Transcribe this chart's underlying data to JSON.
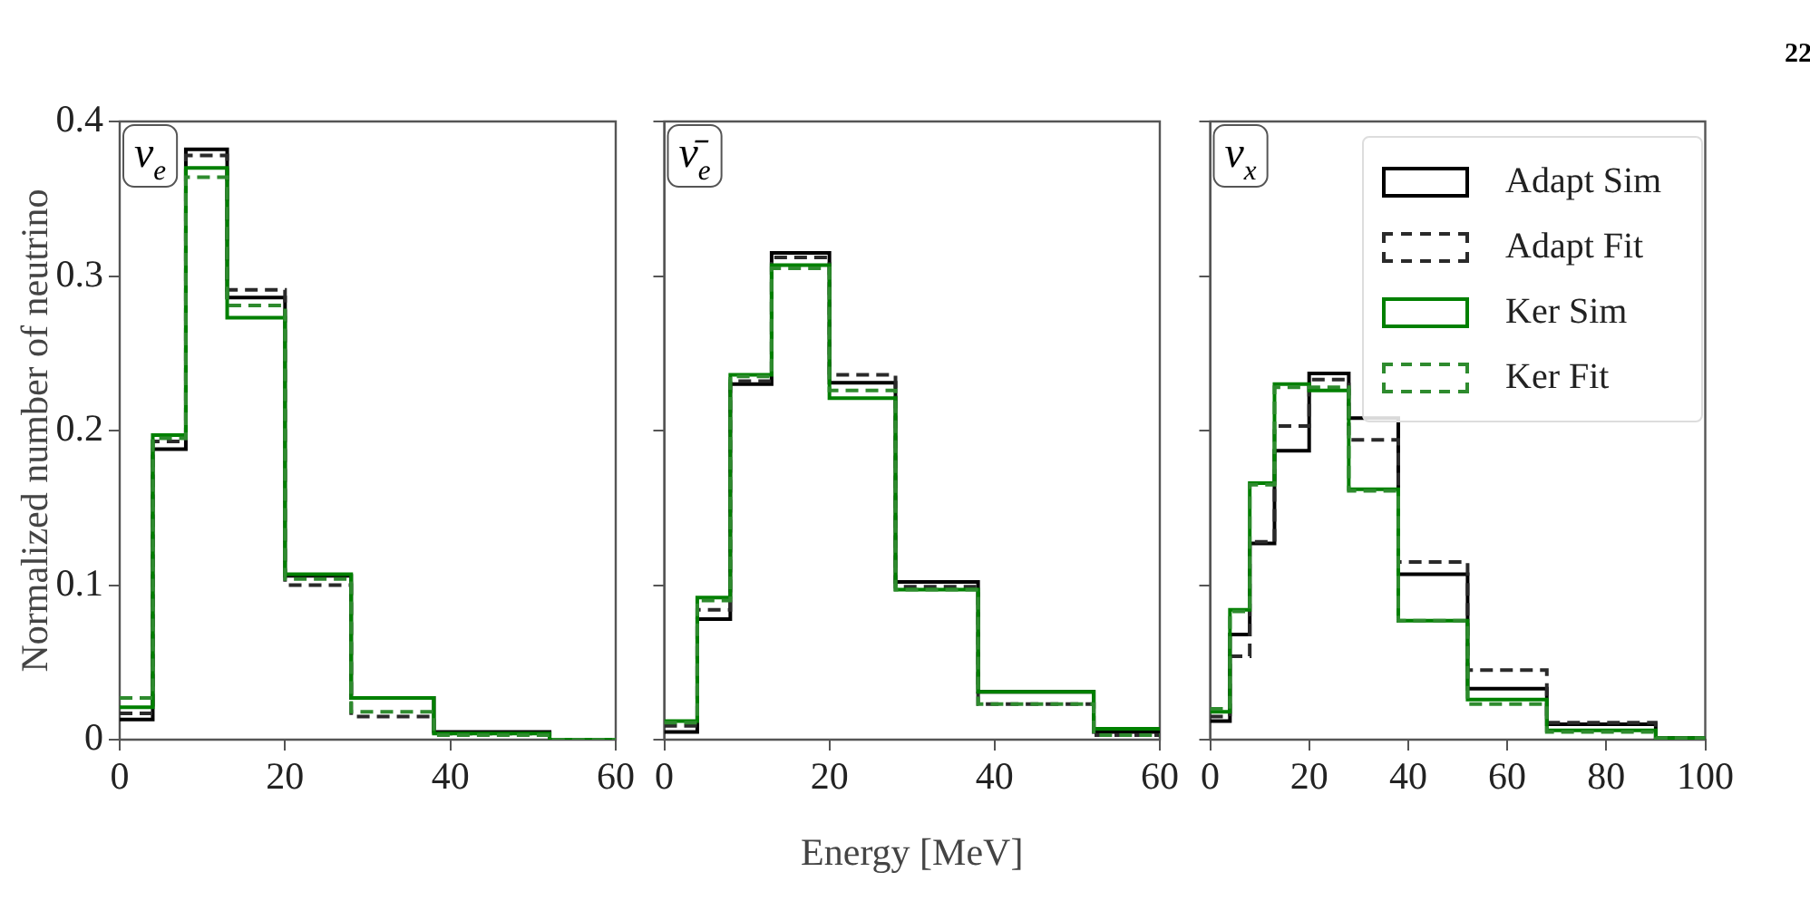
{
  "chart_data": [
    {
      "type": "histogram",
      "ylabel": "Normalized number of neutrino",
      "annotations": [
        "ν$_{e}$"
      ],
      "bins": [
        0,
        4,
        8,
        13,
        20,
        28,
        38,
        52,
        60
      ],
      "xlim": [
        0,
        60
      ],
      "xticks": [
        0,
        20,
        40,
        60
      ],
      "ylim": [
        0,
        0.4
      ],
      "yticks": [
        0,
        0.1,
        0.2,
        0.3,
        0.4
      ],
      "legend": false,
      "series": [
        {
          "color": "#000000",
          "line_style": "solid",
          "values": [
            0.013,
            0.188,
            0.382,
            0.286,
            0.106,
            0.027,
            0.005,
            0
          ]
        },
        {
          "color": "#2a2a2a",
          "line_style": "dashed",
          "values": [
            0.017,
            0.193,
            0.378,
            0.291,
            0.1,
            0.015,
            0.004,
            0
          ]
        },
        {
          "color": "#008000",
          "line_style": "solid",
          "values": [
            0.021,
            0.197,
            0.37,
            0.273,
            0.107,
            0.027,
            0.004,
            0
          ]
        },
        {
          "color": "#2e8b2e",
          "line_style": "dashed",
          "values": [
            0.027,
            0.195,
            0.364,
            0.281,
            0.104,
            0.018,
            0.003,
            0
          ]
        }
      ]
    },
    {
      "type": "histogram",
      "xlabel": "Energy [MeV]",
      "annotations": [
        "ν̄$_{e}$"
      ],
      "bins": [
        0,
        4,
        8,
        13,
        20,
        28,
        38,
        52,
        60
      ],
      "xlim": [
        0,
        60
      ],
      "xticks": [
        0,
        20,
        40,
        60
      ],
      "ylim": [
        0,
        0.4
      ],
      "yticks": [
        0,
        0.1,
        0.2,
        0.3,
        0.4
      ],
      "tick_labels": "x",
      "legend": false,
      "series": [
        {
          "color": "#000000",
          "line_style": "solid",
          "values": [
            0.005,
            0.078,
            0.23,
            0.315,
            0.231,
            0.102,
            0.031,
            0.005
          ]
        },
        {
          "color": "#2a2a2a",
          "line_style": "dashed",
          "values": [
            0.009,
            0.084,
            0.232,
            0.312,
            0.236,
            0.099,
            0.023,
            0.003
          ]
        },
        {
          "color": "#008000",
          "line_style": "solid",
          "values": [
            0.012,
            0.092,
            0.236,
            0.307,
            0.221,
            0.097,
            0.031,
            0.007
          ]
        },
        {
          "color": "#2e8b2e",
          "line_style": "dashed",
          "values": [
            0.011,
            0.09,
            0.235,
            0.305,
            0.226,
            0.097,
            0.023,
            0.003
          ]
        }
      ]
    },
    {
      "type": "histogram",
      "annotations": [
        "ν$_{x}$",
        "22"
      ],
      "bins": [
        0,
        4,
        8,
        13,
        20,
        28,
        38,
        52,
        68,
        90,
        100
      ],
      "xlim": [
        0,
        100
      ],
      "xticks": [
        0,
        20,
        40,
        60,
        80,
        100
      ],
      "ylim": [
        0,
        0.4
      ],
      "yticks": [
        0,
        0.1,
        0.2,
        0.3,
        0.4
      ],
      "tick_labels": "x",
      "legend": "top right",
      "series": [
        {
          "name": "Adapt Sim",
          "color": "#000000",
          "line_style": "solid",
          "values": [
            0.012,
            0.068,
            0.127,
            0.187,
            0.237,
            0.208,
            0.107,
            0.033,
            0.01,
            0.001
          ]
        },
        {
          "name": "Adapt Fit",
          "color": "#2a2a2a",
          "line_style": "dashed",
          "values": [
            0.015,
            0.054,
            0.128,
            0.203,
            0.233,
            0.194,
            0.115,
            0.045,
            0.011,
            0.001
          ]
        },
        {
          "name": "Ker Sim",
          "color": "#008000",
          "line_style": "solid",
          "values": [
            0.018,
            0.084,
            0.166,
            0.23,
            0.226,
            0.162,
            0.077,
            0.026,
            0.006,
            0.001
          ]
        },
        {
          "name": "Ker Fit",
          "color": "#2e8b2e",
          "line_style": "dashed",
          "values": [
            0.02,
            0.083,
            0.165,
            0.228,
            0.228,
            0.161,
            0.077,
            0.023,
            0.005,
            0.001
          ]
        }
      ]
    }
  ]
}
